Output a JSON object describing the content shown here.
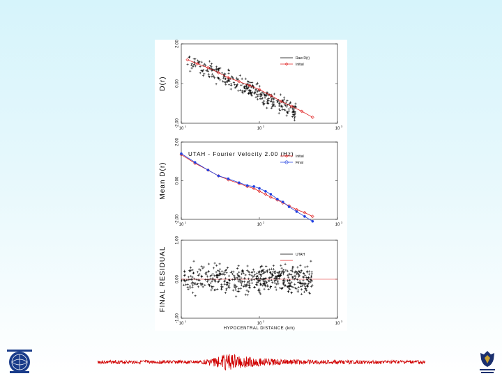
{
  "chart_data": [
    {
      "type": "scatter",
      "ylabel": "D(r)",
      "xscale": "log",
      "xlim": [
        10,
        1000
      ],
      "ylim": [
        -2.0,
        2.0
      ],
      "yticks": [
        "2.00",
        "0.00",
        "-2.00"
      ],
      "xticks": [
        "10",
        "10",
        "10"
      ],
      "xtick_exponents": [
        "1",
        "2",
        "3"
      ],
      "legend": [
        "Raw D(r)",
        "Initial"
      ],
      "legend_position": "top-right",
      "series": [
        {
          "name": "Raw D(r)",
          "style": "crosses",
          "trend": [
            [
              12,
              1.2
            ],
            [
              20,
              0.85
            ],
            [
              35,
              0.35
            ],
            [
              60,
              -0.1
            ],
            [
              100,
              -0.5
            ],
            [
              180,
              -1.0
            ],
            [
              300,
              -1.4
            ]
          ],
          "spread": 0.3
        },
        {
          "name": "Initial",
          "style": "red-diamond-line",
          "x": [
            12,
            16,
            22,
            30,
            40,
            55,
            75,
            100,
            140,
            190,
            260,
            350,
            480
          ],
          "y": [
            1.2,
            1.0,
            0.8,
            0.55,
            0.3,
            0.1,
            -0.1,
            -0.3,
            -0.6,
            -0.9,
            -1.15,
            -1.4,
            -1.7
          ]
        }
      ]
    },
    {
      "type": "line",
      "title": "UTAH - Fourier Velocity 2.00 (Hz)",
      "ylabel": "Mean D(r)",
      "xscale": "log",
      "xlim": [
        10,
        1000
      ],
      "ylim": [
        -2.0,
        2.0
      ],
      "yticks": [
        "2.00",
        "0.00",
        "-2.00"
      ],
      "xticks": [
        "10",
        "10",
        "10"
      ],
      "xtick_exponents": [
        "1",
        "2",
        "3"
      ],
      "legend": [
        "Initial",
        "Final"
      ],
      "legend_position": "top-right",
      "series": [
        {
          "name": "Initial",
          "color": "#e02020",
          "marker": "diamond",
          "x": [
            10,
            15,
            22,
            30,
            40,
            55,
            70,
            85,
            100,
            120,
            140,
            170,
            200,
            240,
            300,
            380,
            480
          ],
          "y": [
            1.35,
            0.9,
            0.55,
            0.25,
            0.05,
            -0.15,
            -0.3,
            -0.4,
            -0.55,
            -0.7,
            -0.85,
            -1.0,
            -1.15,
            -1.3,
            -1.5,
            -1.65,
            -1.85
          ]
        },
        {
          "name": "Final",
          "color": "#2040e0",
          "marker": "circle",
          "x": [
            10,
            15,
            22,
            30,
            40,
            55,
            70,
            85,
            100,
            120,
            140,
            170,
            200,
            240,
            300,
            380,
            480
          ],
          "y": [
            1.4,
            0.95,
            0.55,
            0.25,
            0.1,
            -0.1,
            -0.25,
            -0.3,
            -0.4,
            -0.55,
            -0.7,
            -0.95,
            -1.1,
            -1.35,
            -1.6,
            -1.85,
            -2.1
          ]
        }
      ]
    },
    {
      "type": "scatter",
      "ylabel": "FINAL RESIDUAL",
      "xlabel": "HYPOCENTRAL DISTANCE (km)",
      "xscale": "log",
      "xlim": [
        10,
        1000
      ],
      "ylim": [
        -1.0,
        1.0
      ],
      "yticks": [
        "1.00",
        "0.00",
        "-1.00"
      ],
      "xticks": [
        "10",
        "10",
        "10"
      ],
      "xtick_exponents": [
        "1",
        "2",
        "3"
      ],
      "legend": [
        "UTAH"
      ],
      "legend_position": "top-right",
      "series": [
        {
          "name": "UTAH",
          "style": "crosses",
          "trend": [
            [
              10,
              0.0
            ],
            [
              1000,
              0.0
            ]
          ],
          "spread": 0.25
        }
      ],
      "reference_line": {
        "y": 0.0,
        "color": "#e02020"
      }
    }
  ],
  "colors": {
    "initial": "#e02020",
    "final": "#2040e0",
    "raw": "#000000",
    "seismogram": "#d00000"
  },
  "icons": {
    "left_logo": "globe-seal-logo-icon",
    "right_logo": "shield-crest-logo-icon"
  }
}
